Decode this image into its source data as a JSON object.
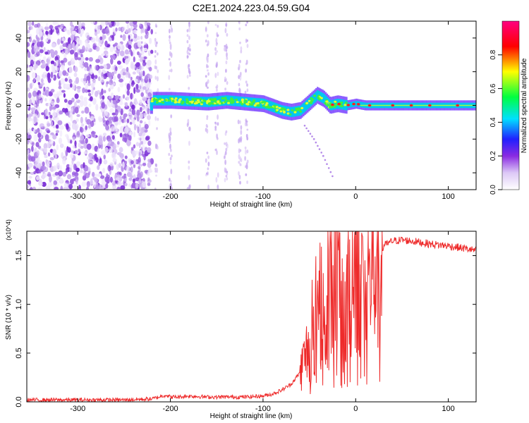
{
  "figure_title": "C2E1.2024.223.04.59.G04",
  "chart_data": [
    {
      "type": "heatmap",
      "title": "",
      "xlabel": "Height of straight line (km)",
      "ylabel": "Frequency (Hz)",
      "xlim": [
        -355,
        130
      ],
      "ylim": [
        -50,
        50
      ],
      "x_ticks": [
        -300,
        -200,
        -100,
        0,
        100
      ],
      "y_ticks": [
        -40,
        -20,
        0,
        20,
        40
      ],
      "colorbar": {
        "label": "Normalized spectral amplitude",
        "range": [
          0.0,
          1.0
        ],
        "ticks": [
          0.0,
          0.2,
          0.4,
          0.6,
          0.8
        ],
        "colormap": [
          "#ffffff",
          "#dcc8f6",
          "#8a2be2",
          "#2020ff",
          "#00e0ff",
          "#00ff40",
          "#ffff00",
          "#ff0000",
          "#ff0080"
        ]
      },
      "regions": {
        "noise_band_x": [
          -355,
          -220
        ],
        "sparse_stripes_x": [
          -235,
          -115
        ],
        "signal_trace": [
          {
            "x": -220,
            "y": 3
          },
          {
            "x": -200,
            "y": 3
          },
          {
            "x": -180,
            "y": 2.5
          },
          {
            "x": -160,
            "y": 2
          },
          {
            "x": -140,
            "y": 3
          },
          {
            "x": -120,
            "y": 2
          },
          {
            "x": -100,
            "y": 1
          },
          {
            "x": -90,
            "y": -1
          },
          {
            "x": -80,
            "y": -3
          },
          {
            "x": -70,
            "y": -4
          },
          {
            "x": -60,
            "y": -3
          },
          {
            "x": -50,
            "y": 2
          },
          {
            "x": -42,
            "y": 6
          },
          {
            "x": -35,
            "y": 4
          },
          {
            "x": -28,
            "y": 0
          },
          {
            "x": -20,
            "y": 1
          },
          {
            "x": -10,
            "y": 0
          },
          {
            "x": 0,
            "y": 1
          },
          {
            "x": 10,
            "y": 0
          },
          {
            "x": 50,
            "y": 0
          },
          {
            "x": 130,
            "y": 0
          }
        ],
        "descending_tail": [
          {
            "x": -55,
            "y": -12
          },
          {
            "x": -45,
            "y": -20
          },
          {
            "x": -35,
            "y": -30
          },
          {
            "x": -25,
            "y": -42
          }
        ]
      }
    },
    {
      "type": "line",
      "title": "",
      "xlabel": "Height of straight line (km)",
      "ylabel": "SNR (10 * v/v)",
      "y_multiplier": "(x10^4)",
      "xlim": [
        -355,
        130
      ],
      "ylim": [
        0,
        1.75
      ],
      "x_ticks": [
        -300,
        -200,
        -100,
        0,
        100
      ],
      "y_ticks": [
        0.0,
        0.5,
        1.0,
        1.5
      ],
      "y_tick_labels": [
        "0.0",
        "0.5",
        "1.0",
        "1.5"
      ],
      "color": "#ee2a2a",
      "series": [
        {
          "x": [
            -355,
            -300,
            -250,
            -220,
            -205,
            -200,
            -190,
            -180,
            -160,
            -140,
            -120,
            -100,
            -90,
            -80,
            -70,
            -60,
            -55,
            -50,
            -45,
            -40,
            -35,
            -30,
            -25,
            -20,
            -15,
            -10,
            -5,
            0,
            5,
            10,
            15,
            20,
            25,
            30,
            40,
            50,
            60,
            80,
            100,
            120,
            130
          ],
          "values": [
            0.02,
            0.02,
            0.02,
            0.03,
            0.07,
            0.05,
            0.05,
            0.06,
            0.05,
            0.05,
            0.05,
            0.06,
            0.08,
            0.12,
            0.18,
            0.3,
            0.45,
            0.6,
            0.85,
            1.0,
            1.15,
            1.3,
            1.4,
            1.3,
            1.0,
            0.9,
            1.3,
            1.5,
            1.4,
            1.2,
            1.25,
            1.4,
            1.55,
            1.6,
            1.65,
            1.66,
            1.65,
            1.62,
            1.6,
            1.57,
            1.55
          ]
        }
      ]
    }
  ]
}
